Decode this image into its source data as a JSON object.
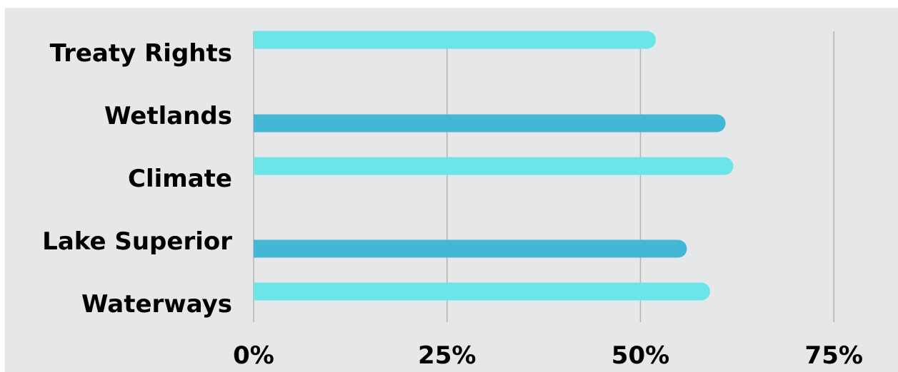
{
  "chart_data": {
    "type": "bar",
    "orientation": "horizontal",
    "categories": [
      "Treaty Rights",
      "Wetlands",
      "Climate",
      "Lake Superior",
      "Waterways"
    ],
    "series": [
      {
        "values": [
          52,
          null,
          62,
          null,
          59
        ],
        "color": "#6be5e8"
      },
      {
        "values": [
          null,
          61,
          null,
          56,
          null
        ],
        "color": "#44b7d6"
      }
    ],
    "xlim": [
      0,
      75
    ],
    "x_ticks": [
      "0%",
      "25%",
      "50%",
      "75%"
    ],
    "x_tick_values": [
      0,
      25,
      50,
      75
    ],
    "grid": "vertical",
    "legend": "none",
    "title": "",
    "xlabel": "",
    "ylabel": ""
  },
  "colors": {
    "background": "#e6e7e9",
    "gridline": "#b3b3b3"
  }
}
